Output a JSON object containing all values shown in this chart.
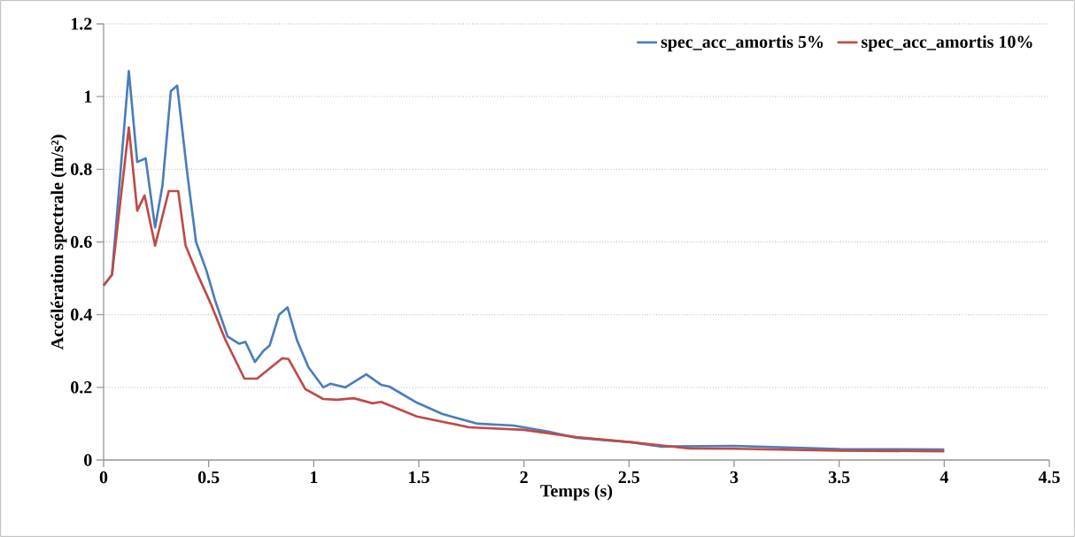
{
  "chart_data": {
    "type": "line",
    "xlabel": "Temps (s)",
    "ylabel": "Accélération spectrale (m/s²)",
    "xlim": [
      0,
      4.5
    ],
    "ylim": [
      0,
      1.2
    ],
    "xticks": [
      0,
      0.5,
      1,
      1.5,
      2,
      2.5,
      3,
      3.5,
      4,
      4.5
    ],
    "yticks": [
      0,
      0.2,
      0.4,
      0.6,
      0.8,
      1,
      1.2
    ],
    "grid": "y",
    "legend": "top right",
    "marker": "none",
    "line_style": "solid",
    "series": [
      {
        "name": "spec_acc_amortis 5%",
        "color": "#4a7ebb",
        "x": [
          0,
          0.04,
          0.12,
          0.16,
          0.2,
          0.245,
          0.28,
          0.32,
          0.35,
          0.4,
          0.44,
          0.49,
          0.53,
          0.59,
          0.645,
          0.675,
          0.72,
          0.76,
          0.79,
          0.835,
          0.875,
          0.92,
          0.975,
          1.045,
          1.08,
          1.15,
          1.25,
          1.32,
          1.36,
          1.49,
          1.61,
          1.78,
          1.95,
          2.12,
          2.25,
          2.51,
          2.65,
          3.0,
          3.5,
          4.0
        ],
        "values": [
          0.48,
          0.51,
          1.07,
          0.82,
          0.83,
          0.64,
          0.755,
          1.015,
          1.03,
          0.78,
          0.6,
          0.52,
          0.44,
          0.34,
          0.32,
          0.325,
          0.27,
          0.3,
          0.315,
          0.4,
          0.42,
          0.33,
          0.255,
          0.2,
          0.21,
          0.2,
          0.236,
          0.207,
          0.202,
          0.158,
          0.127,
          0.1,
          0.095,
          0.078,
          0.061,
          0.049,
          0.037,
          0.039,
          0.03,
          0.029
        ]
      },
      {
        "name": "spec_acc_amortis 10%",
        "color": "#be4b48",
        "x": [
          0,
          0.04,
          0.12,
          0.16,
          0.195,
          0.245,
          0.31,
          0.355,
          0.39,
          0.44,
          0.51,
          0.58,
          0.67,
          0.73,
          0.85,
          0.88,
          0.96,
          1.045,
          1.11,
          1.19,
          1.28,
          1.32,
          1.38,
          1.49,
          1.74,
          2.0,
          2.25,
          2.51,
          2.79,
          3.0,
          3.5,
          4.0
        ],
        "values": [
          0.48,
          0.51,
          0.915,
          0.686,
          0.728,
          0.59,
          0.74,
          0.74,
          0.59,
          0.52,
          0.43,
          0.33,
          0.224,
          0.224,
          0.28,
          0.278,
          0.195,
          0.168,
          0.166,
          0.17,
          0.156,
          0.16,
          0.146,
          0.12,
          0.09,
          0.083,
          0.063,
          0.049,
          0.032,
          0.031,
          0.026,
          0.024
        ]
      }
    ]
  }
}
